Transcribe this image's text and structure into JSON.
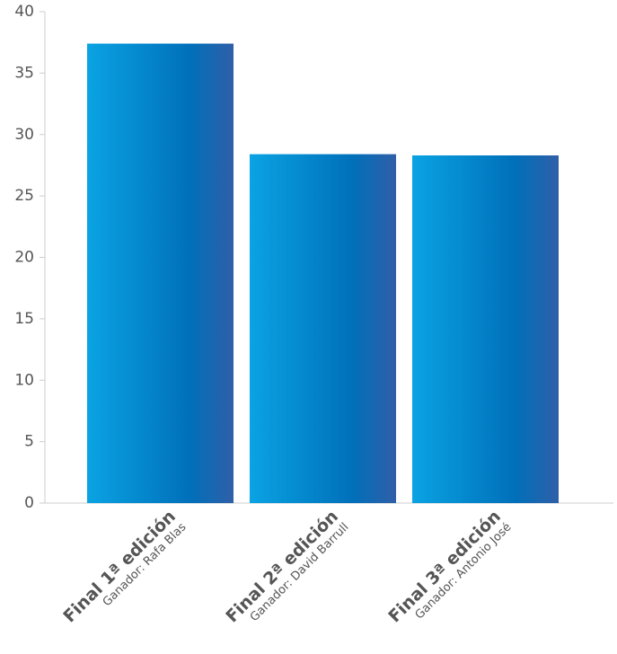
{
  "chart_data": {
    "type": "bar",
    "categories": [
      "Final 1ª edición",
      "Final 2ª edición",
      "Final 3ª edición"
    ],
    "category_subtitles": [
      "Ganador: Rafa Blas",
      "Ganador: David Barrull",
      "Ganador: Antonio José"
    ],
    "values": [
      37.4,
      28.4,
      28.3
    ],
    "color": "#0a9fe0",
    "ylim": [
      0,
      40
    ],
    "yticks": [
      0,
      5,
      10,
      15,
      20,
      25,
      30,
      35,
      40
    ],
    "grid": false
  }
}
